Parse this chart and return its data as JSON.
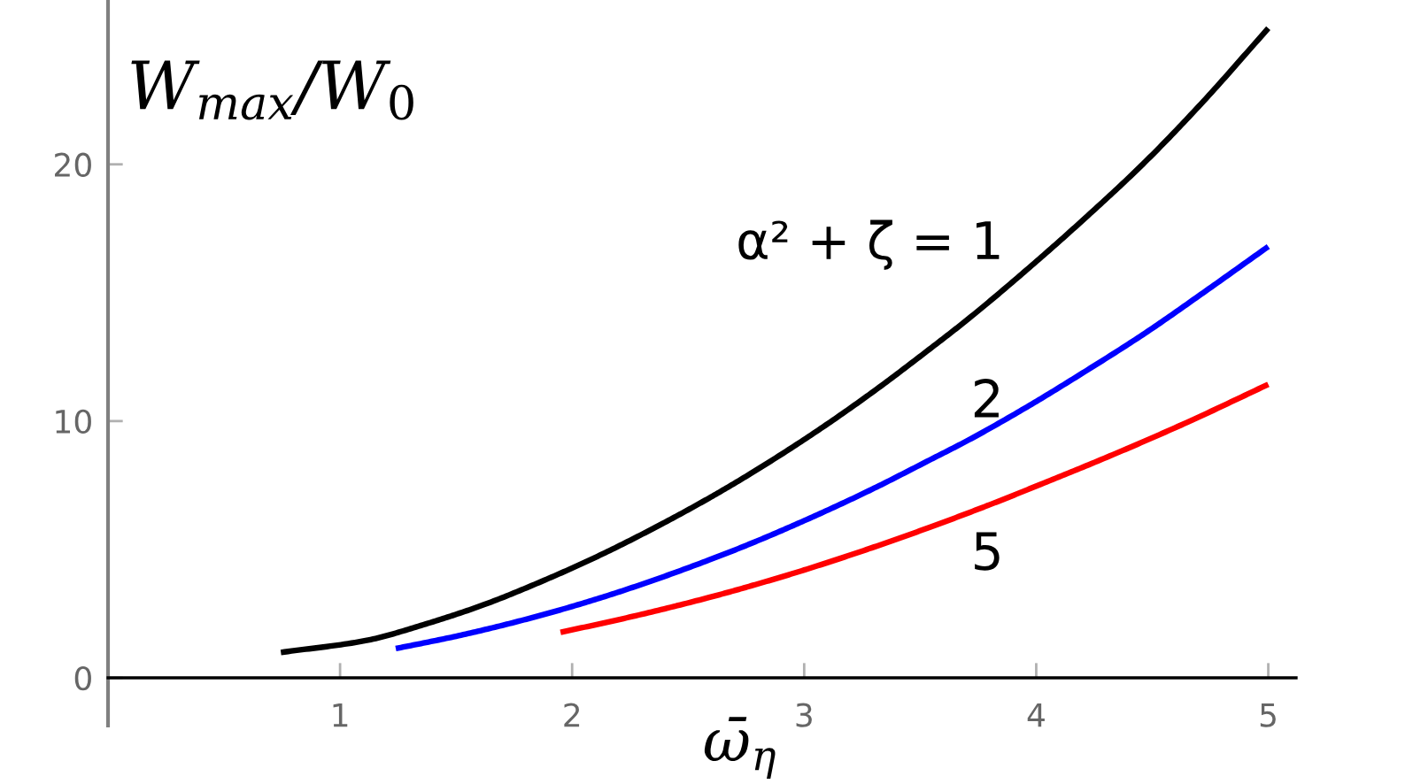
{
  "chart_data": {
    "type": "line",
    "xlabel": "ω̄$_{η}$",
    "ylabel": "W$_{max}$/W$_{0}$",
    "xlim": [
      0,
      5.12
    ],
    "ylim": [
      -1.86,
      26.4
    ],
    "xticks": [
      1,
      2,
      3,
      4,
      5
    ],
    "yticks": [
      0,
      10,
      20
    ],
    "series": [
      {
        "name": "α² + ζ = 1",
        "color": "#000000",
        "x": [
          0.745,
          1.11,
          1.37,
          1.62,
          1.88,
          2.13,
          2.39,
          2.59,
          2.77,
          3.03,
          3.28,
          3.54,
          3.71,
          3.96,
          4.21,
          4.47,
          4.72,
          5.0
        ],
        "values": [
          0.99,
          1.45,
          2.1,
          2.85,
          3.8,
          4.82,
          6.01,
          7.0,
          7.96,
          9.46,
          11.03,
          12.8,
          14.0,
          15.9,
          17.9,
          20.1,
          22.45,
          25.3
        ]
      },
      {
        "name": "2",
        "color": "#0000ff",
        "x": [
          1.24,
          1.5,
          1.75,
          2.0,
          2.26,
          2.59,
          2.77,
          3.0,
          3.28,
          3.54,
          3.71,
          3.96,
          4.21,
          4.47,
          4.72,
          5.0
        ],
        "values": [
          1.14,
          1.62,
          2.16,
          2.78,
          3.52,
          4.59,
          5.23,
          6.12,
          7.29,
          8.48,
          9.27,
          10.55,
          11.93,
          13.43,
          15.0,
          16.8
        ]
      },
      {
        "name": "5",
        "color": "#ff0000",
        "x": [
          1.95,
          2.26,
          2.59,
          2.77,
          3.0,
          3.28,
          3.54,
          3.79,
          4.02,
          4.33,
          4.65,
          5.0
        ],
        "values": [
          1.77,
          2.39,
          3.13,
          3.58,
          4.2,
          5.03,
          5.86,
          6.71,
          7.54,
          8.69,
          9.95,
          11.43
        ]
      }
    ]
  }
}
